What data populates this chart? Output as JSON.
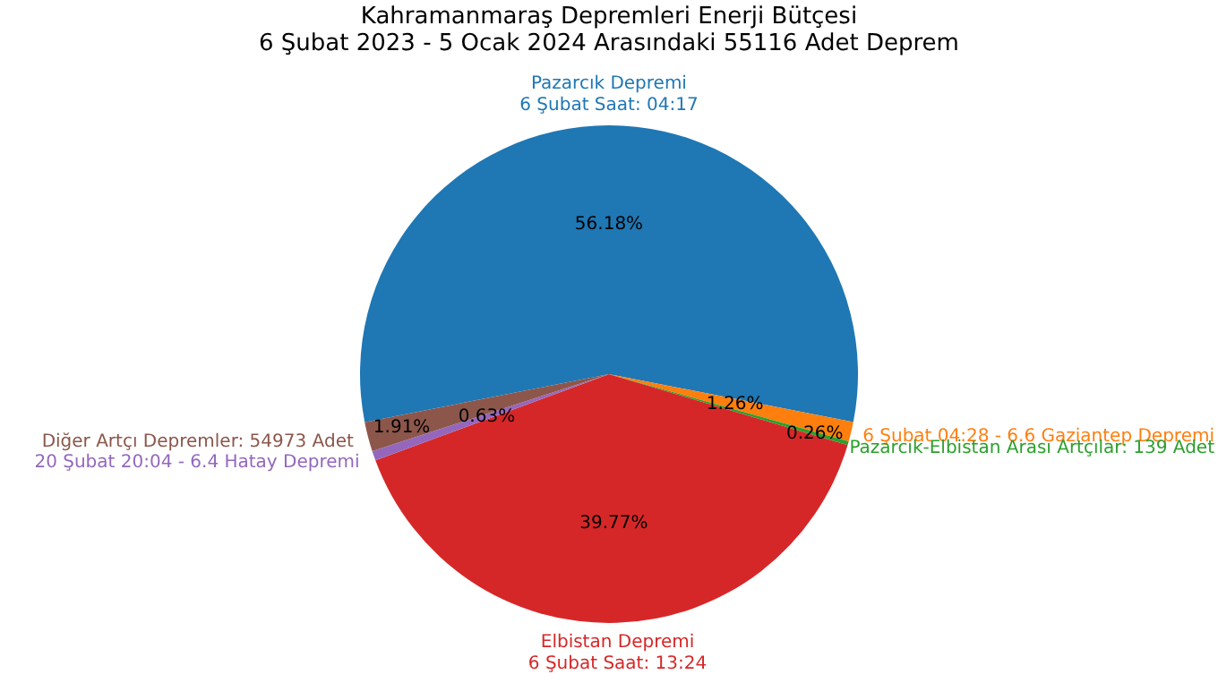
{
  "chart_data": {
    "type": "pie",
    "title": "Kahramanmaraş Depremleri Enerji Bütçesi\n6 Şubat 2023 - 5 Ocak 2024 Arasındaki 55116 Adet Deprem",
    "categories": [
      "Pazarcık Depremi\n6 Şubat Saat: 04:17",
      "6 Şubat 04:28 - 6.6 Gaziantep Depremi",
      "Pazarcık-Elbistan Arası Artçılar: 139 Adet",
      "Elbistan Depremi\n6 Şubat Saat: 13:24",
      "20 Şubat 20:04 - 6.4 Hatay Depremi",
      "Diğer Artçı Depremler: 54973 Adet"
    ],
    "values": [
      56.18,
      1.26,
      0.26,
      39.77,
      0.63,
      1.91
    ],
    "colors": [
      "#1f77b4",
      "#ff7f0e",
      "#2ca02c",
      "#d62728",
      "#9467bd",
      "#8c564b"
    ],
    "value_labels": [
      "56.18%",
      "1.26%",
      "0.26%",
      "39.77%",
      "0.63%",
      "1.91%"
    ],
    "legend": false
  }
}
